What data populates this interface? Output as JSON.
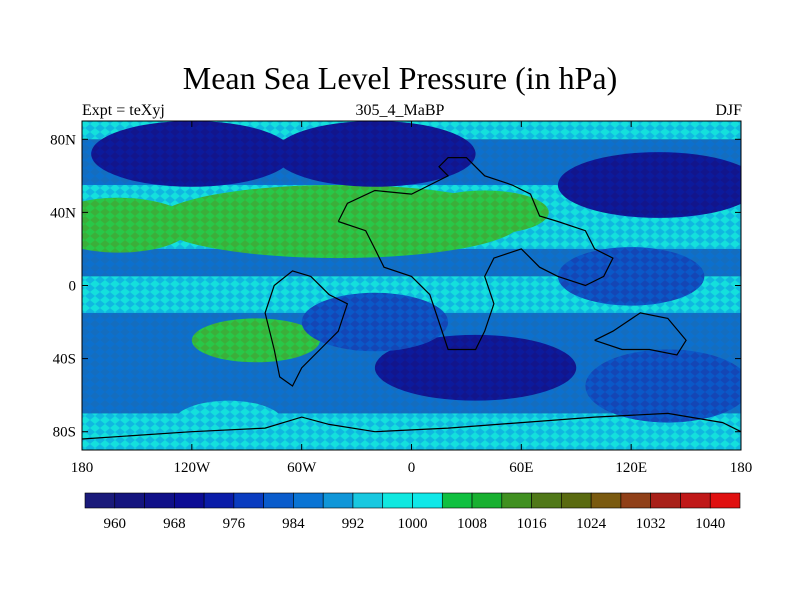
{
  "title": "Mean Sea Level Pressure (in hPa)",
  "subtitle_left": "Expt = teXyj",
  "subtitle_center": "305_4_MaBP",
  "subtitle_right": "DJF",
  "colors": {
    "ocean_blue": "#0a6fd0",
    "shade_cyan": "#12e0d8",
    "shade_green": "#20c040",
    "coast": "#000000"
  },
  "chart_data": {
    "type": "heatmap",
    "projection": "cylindrical-equidistant",
    "xlim": [
      -180,
      180
    ],
    "ylim": [
      -90,
      90
    ],
    "x_ticks": [
      {
        "value": -180,
        "label": "180"
      },
      {
        "value": -120,
        "label": "120W"
      },
      {
        "value": -60,
        "label": "60W"
      },
      {
        "value": 0,
        "label": "0"
      },
      {
        "value": 60,
        "label": "60E"
      },
      {
        "value": 120,
        "label": "120E"
      },
      {
        "value": 180,
        "label": "180"
      }
    ],
    "y_ticks": [
      {
        "value": 80,
        "label": "80N"
      },
      {
        "value": 40,
        "label": "40N"
      },
      {
        "value": 0,
        "label": "0"
      },
      {
        "value": -40,
        "label": "40S"
      },
      {
        "value": -80,
        "label": "80S"
      }
    ],
    "colorbar": {
      "levels": [
        960,
        964,
        968,
        972,
        976,
        980,
        984,
        988,
        992,
        996,
        1000,
        1004,
        1008,
        1012,
        1016,
        1020,
        1024,
        1028,
        1032,
        1036,
        1040
      ],
      "colors": [
        "#1a1a7a",
        "#14147e",
        "#101088",
        "#0c0c94",
        "#0a1ca8",
        "#0a3cc0",
        "#0a5ccc",
        "#0a74d4",
        "#1096d8",
        "#18c8e0",
        "#10e8e0",
        "#10e8e8",
        "#10c040",
        "#18b030",
        "#409020",
        "#507818",
        "#5a6a10",
        "#7a5a10",
        "#904018",
        "#a82018",
        "#c01818",
        "#e01010"
      ],
      "labels": [
        "960",
        "968",
        "976",
        "984",
        "992",
        "1000",
        "1008",
        "1016",
        "1024",
        "1032",
        "1040"
      ],
      "label_values": [
        960,
        968,
        976,
        984,
        992,
        1000,
        1008,
        1016,
        1024,
        1032,
        1040
      ]
    },
    "pressure_centers": [
      {
        "lon": -120,
        "lat": 72,
        "value": 960
      },
      {
        "lon": -20,
        "lat": 72,
        "value": 964
      },
      {
        "lon": 135,
        "lat": 55,
        "value": 968
      },
      {
        "lon": 35,
        "lat": -45,
        "value": 964
      },
      {
        "lon": 140,
        "lat": -55,
        "value": 972
      },
      {
        "lon": -60,
        "lat": 35,
        "value": 1010
      },
      {
        "lon": 40,
        "lat": 40,
        "value": 1012
      },
      {
        "lon": -85,
        "lat": -30,
        "value": 1008
      },
      {
        "lon": -100,
        "lat": -75,
        "value": 1004
      },
      {
        "lon": 120,
        "lat": 5,
        "value": 996
      },
      {
        "lon": -20,
        "lat": -20,
        "value": 988
      }
    ]
  }
}
